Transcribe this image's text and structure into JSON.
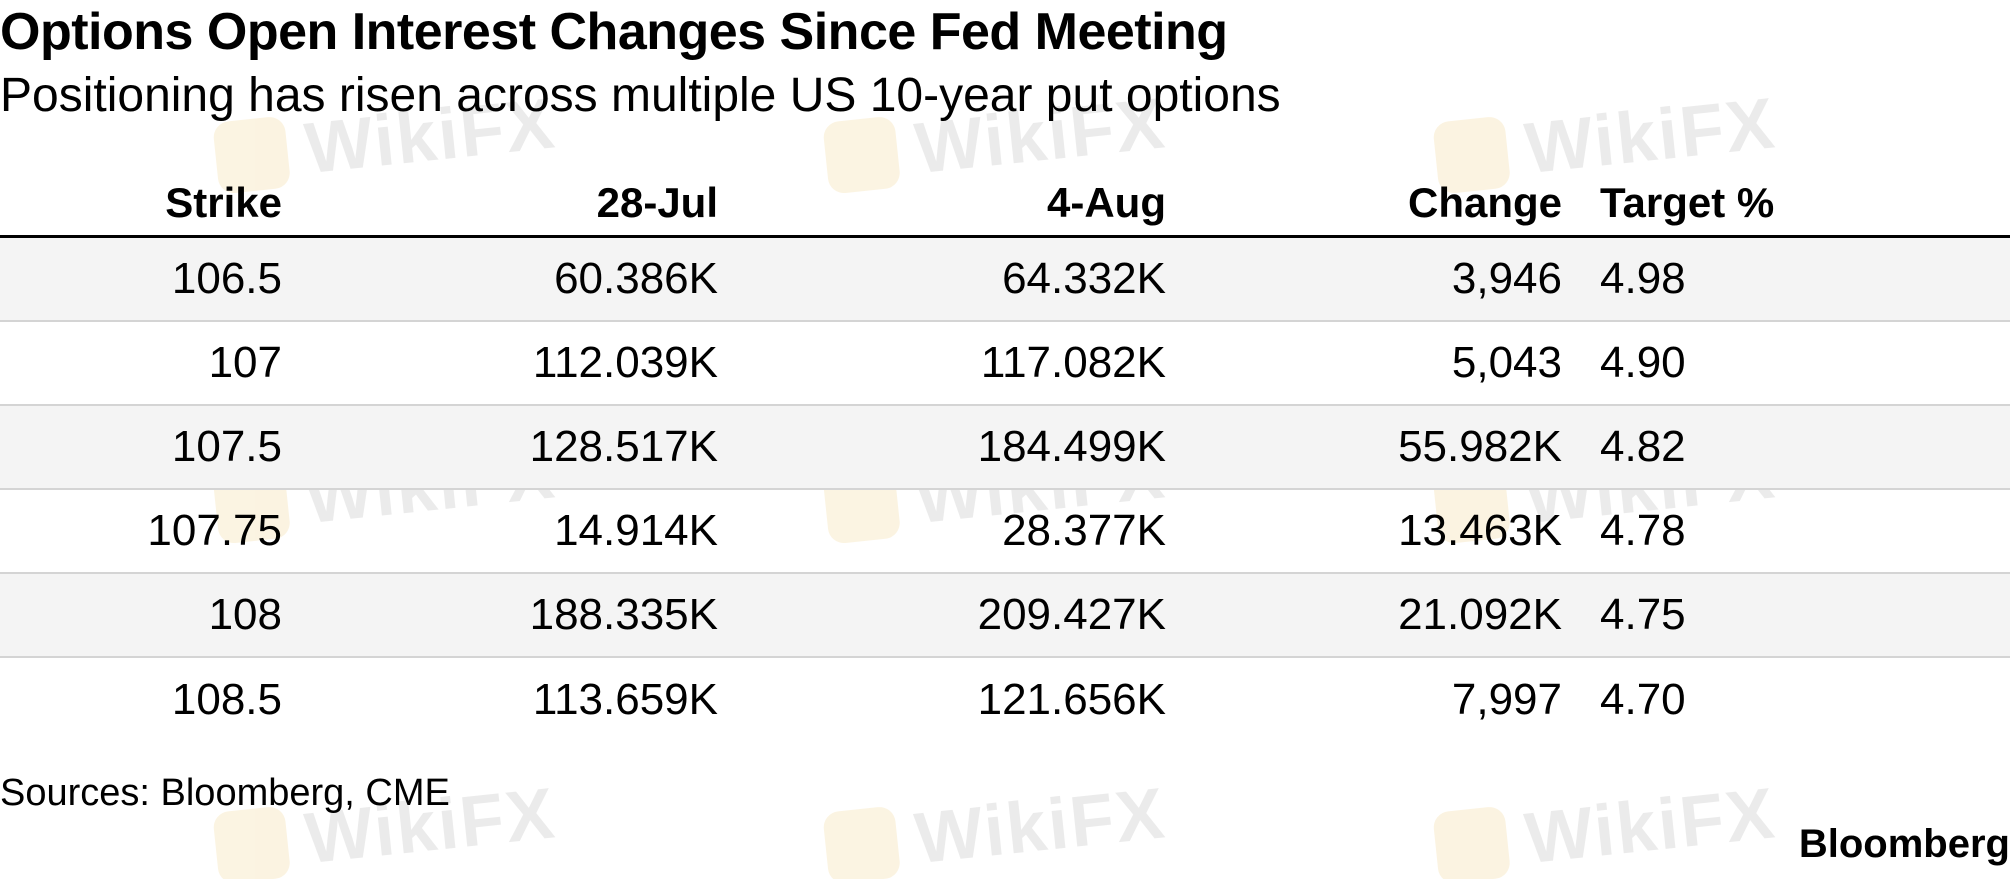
{
  "chart_data": {
    "type": "table",
    "title": "Options Open Interest Changes Since Fed Meeting",
    "subtitle": "Positioning has risen across multiple US 10-year put options",
    "columns": [
      "Strike",
      "28-Jul",
      "4-Aug",
      "Change",
      "Target %"
    ],
    "rows": [
      [
        "106.5",
        "60.386K",
        "64.332K",
        "3,946",
        "4.98"
      ],
      [
        "107",
        "112.039K",
        "117.082K",
        "5,043",
        "4.90"
      ],
      [
        "107.5",
        "128.517K",
        "184.499K",
        "55.982K",
        "4.82"
      ],
      [
        "107.75",
        "14.914K",
        "28.377K",
        "13.463K",
        "4.78"
      ],
      [
        "108",
        "188.335K",
        "209.427K",
        "21.092K",
        "4.75"
      ],
      [
        "108.5",
        "113.659K",
        "121.656K",
        "7,997",
        "4.70"
      ]
    ],
    "source": "Sources: Bloomberg, CME",
    "brand": "Bloomberg"
  },
  "watermark": {
    "text": "WikiFX"
  },
  "colors": {
    "shaded_row": "#f4f4f4",
    "rule": "#000000",
    "row_divider": "#d4d4d4"
  }
}
